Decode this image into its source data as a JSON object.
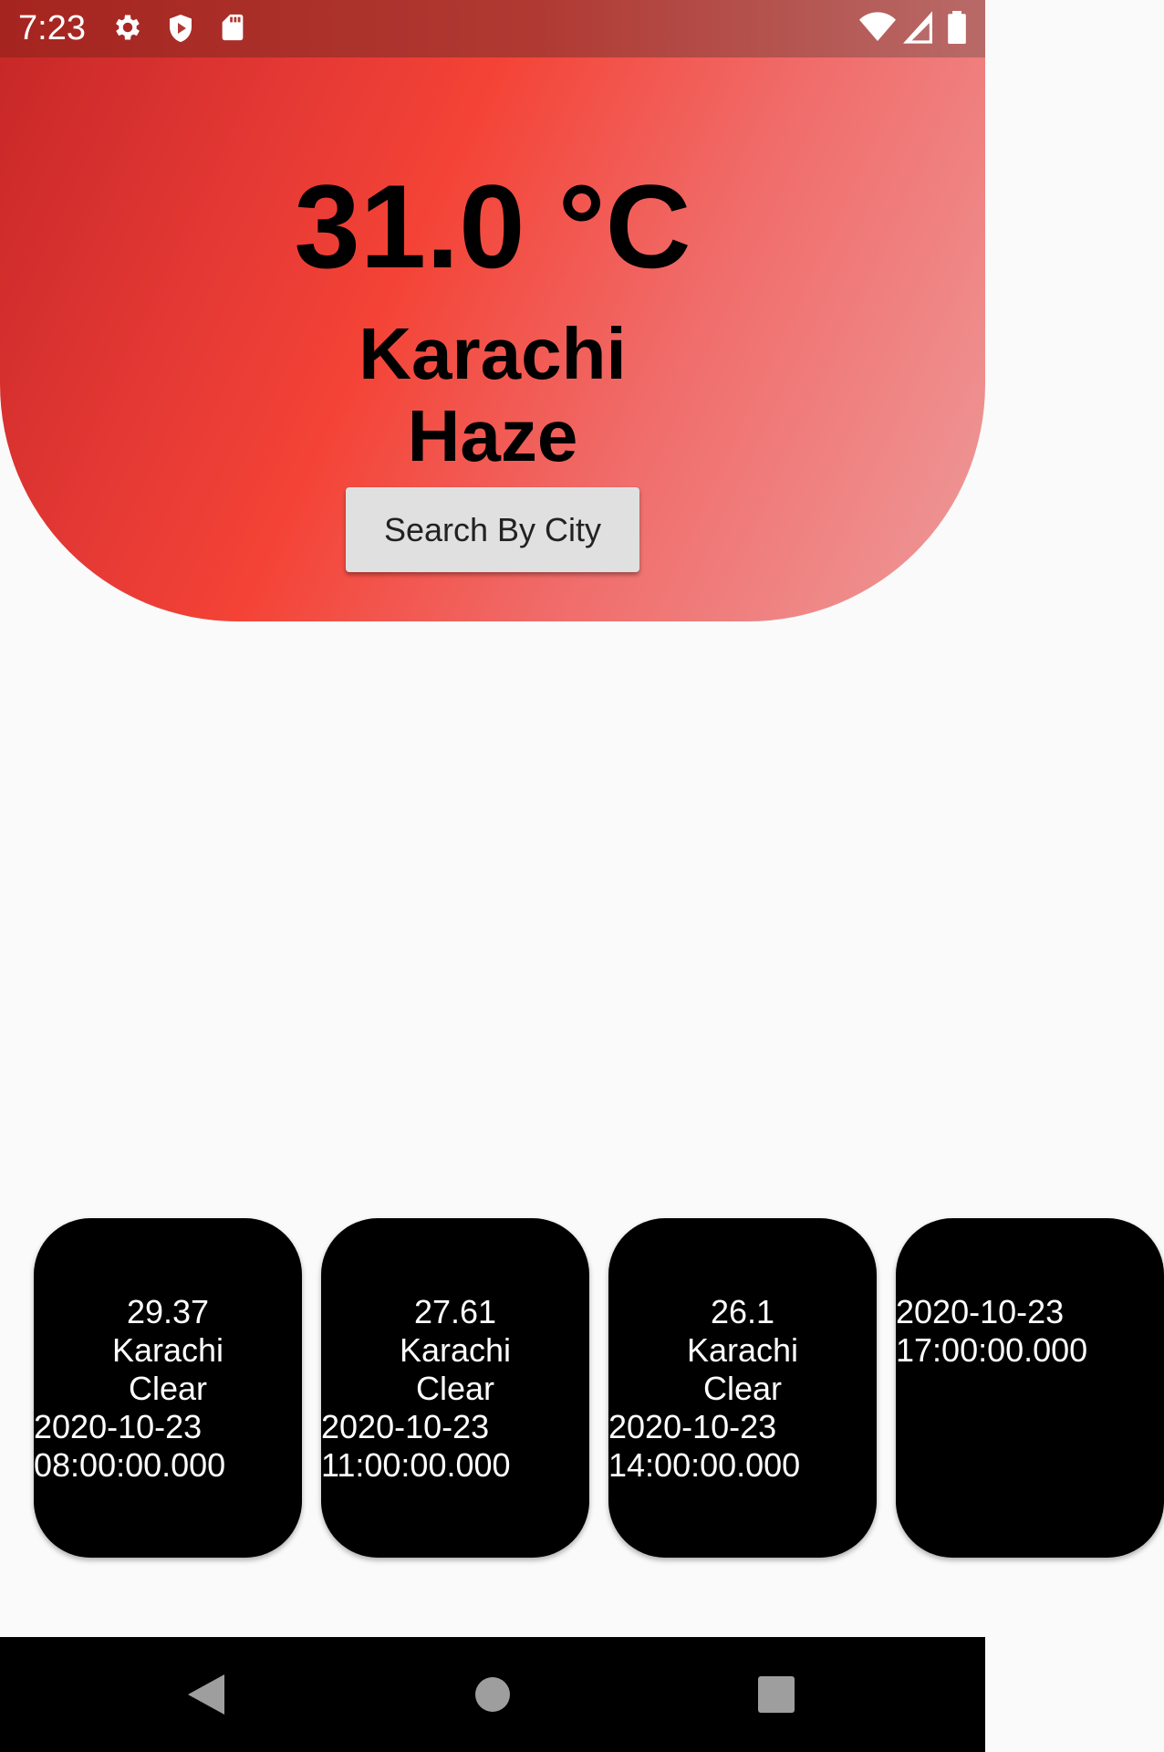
{
  "status_bar": {
    "time": "7:23",
    "icons": [
      "settings-icon",
      "shield-icon",
      "sd-card-icon",
      "wifi-icon",
      "signal-icon",
      "battery-icon"
    ]
  },
  "current": {
    "temperature": "31.0 °C",
    "city": "Karachi",
    "condition": "Haze",
    "search_button_label": "Search By City"
  },
  "forecast": [
    {
      "temp": "29.37",
      "city": "Karachi",
      "condition": "Clear",
      "date": "2020-10-23",
      "time": "08:00:00.000"
    },
    {
      "temp": "27.61",
      "city": "Karachi",
      "condition": "Clear",
      "date": "2020-10-23",
      "time": "11:00:00.000"
    },
    {
      "temp": "26.1",
      "city": "Karachi",
      "condition": "Clear",
      "date": "2020-10-23",
      "time": "14:00:00.000"
    },
    {
      "temp": "",
      "city": "",
      "condition": "",
      "date": "2020-10-23",
      "time": "17:00:00.000"
    }
  ],
  "nav": {
    "icons": [
      "back-icon",
      "home-icon",
      "recents-icon"
    ]
  },
  "colors": {
    "hero_start": "#c82828",
    "hero_mid": "#f44336",
    "hero_end": "#ee9a9a",
    "card": "#000000",
    "background": "#fafafa"
  }
}
